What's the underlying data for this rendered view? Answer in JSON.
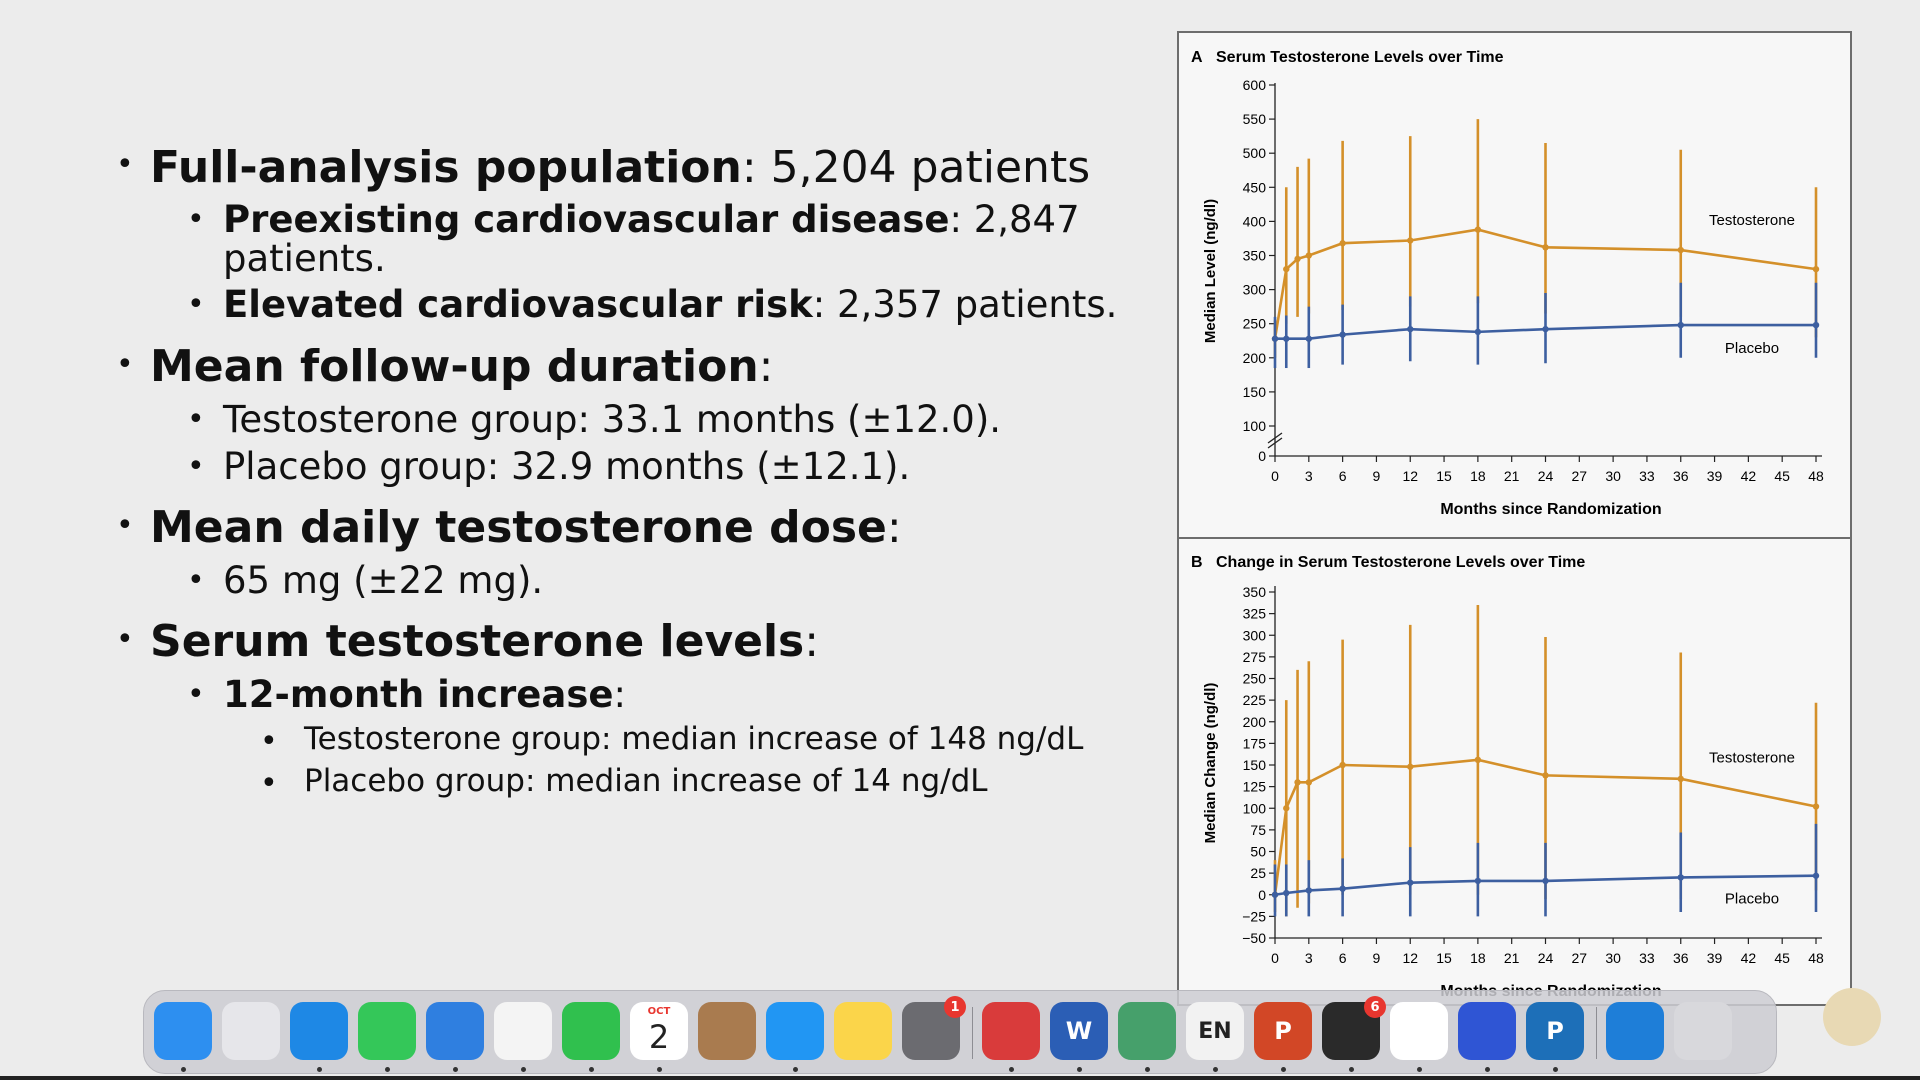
{
  "slide": {
    "bullets": [
      {
        "bold": "Full-analysis population",
        "rest": ": 5,204 patients"
      },
      {
        "bold": "Preexisting cardiovascular disease",
        "rest": ": 2,847",
        "cont": "patients."
      },
      {
        "bold": "Elevated cardiovascular risk",
        "rest": ": 2,357 patients."
      },
      {
        "bold": "Mean follow-up duration",
        "rest": ":"
      },
      {
        "bold": "",
        "rest": "Testosterone group: 33.1 months (±12.0)."
      },
      {
        "bold": "",
        "rest": "Placebo group: 32.9 months (±12.1)."
      },
      {
        "bold": "Mean daily testosterone dose",
        "rest": ":"
      },
      {
        "bold": "",
        "rest": "65 mg (±22 mg)."
      },
      {
        "bold": "Serum testosterone levels",
        "rest": ":"
      },
      {
        "bold": "12-month increase",
        "rest": ":"
      },
      {
        "bold": "",
        "rest": "Testosterone group: median increase of 148 ng/dL"
      },
      {
        "bold": "",
        "rest": "Placebo group: median increase of 14 ng/dL"
      }
    ]
  },
  "figure": {
    "panelA": {
      "letter": "A",
      "title": "Serum Testosterone Levels over Time",
      "xlabel": "Months since Randomization",
      "ylabel": "Median Level (ng/dl)"
    },
    "panelB": {
      "letter": "B",
      "title": "Change in Serum Testosterone Levels over Time",
      "xlabel": "Months since Randomization",
      "ylabel": "Median Change (ng/dl)"
    }
  },
  "chart_data": [
    {
      "type": "line",
      "title": "Serum Testosterone Levels over Time",
      "xlabel": "Months since Randomization",
      "ylabel": "Median Level (ng/dl)",
      "xticks": [
        0,
        3,
        6,
        9,
        12,
        15,
        18,
        21,
        24,
        27,
        30,
        33,
        36,
        39,
        42,
        45,
        48
      ],
      "yticks": [
        0,
        100,
        150,
        200,
        250,
        300,
        350,
        400,
        450,
        500,
        550,
        600
      ],
      "xlim": [
        0,
        48
      ],
      "ylim": [
        0,
        600
      ],
      "y_axis_break": true,
      "series": [
        {
          "name": "Testosterone",
          "color": "#d4902a",
          "x": [
            0,
            1,
            2,
            3,
            6,
            12,
            18,
            24,
            36,
            48
          ],
          "y": [
            228,
            330,
            345,
            350,
            368,
            372,
            388,
            362,
            358,
            330
          ],
          "err_low": [
            200,
            250,
            260,
            265,
            270,
            275,
            280,
            265,
            260,
            230
          ],
          "err_high": [
            255,
            450,
            480,
            492,
            518,
            525,
            550,
            515,
            505,
            450
          ]
        },
        {
          "name": "Placebo",
          "color": "#3d5fa0",
          "x": [
            0,
            1,
            3,
            6,
            12,
            18,
            24,
            36,
            48
          ],
          "y": [
            228,
            228,
            228,
            234,
            242,
            238,
            242,
            248,
            248
          ],
          "err_low": [
            185,
            185,
            185,
            190,
            195,
            190,
            192,
            200,
            200
          ],
          "err_high": [
            260,
            262,
            275,
            278,
            290,
            290,
            295,
            310,
            310
          ]
        }
      ]
    },
    {
      "type": "line",
      "title": "Change in Serum Testosterone Levels over Time",
      "xlabel": "Months since Randomization",
      "ylabel": "Median Change (ng/dl)",
      "xticks": [
        0,
        3,
        6,
        9,
        12,
        15,
        18,
        21,
        24,
        27,
        30,
        33,
        36,
        39,
        42,
        45,
        48
      ],
      "yticks": [
        -50,
        -25,
        0,
        25,
        50,
        75,
        100,
        125,
        150,
        175,
        200,
        225,
        250,
        275,
        300,
        325,
        350
      ],
      "xlim": [
        0,
        48
      ],
      "ylim": [
        -50,
        350
      ],
      "series": [
        {
          "name": "Testosterone",
          "color": "#d4902a",
          "x": [
            0,
            1,
            2,
            3,
            6,
            12,
            18,
            24,
            36,
            48
          ],
          "y": [
            0,
            100,
            130,
            130,
            150,
            148,
            156,
            138,
            134,
            102
          ],
          "err_low": [
            -20,
            -25,
            -15,
            -10,
            0,
            0,
            0,
            -5,
            -5,
            5
          ],
          "err_high": [
            40,
            225,
            260,
            270,
            295,
            312,
            335,
            298,
            280,
            222
          ]
        },
        {
          "name": "Placebo",
          "color": "#3d5fa0",
          "x": [
            0,
            1,
            3,
            6,
            12,
            18,
            24,
            36,
            48
          ],
          "y": [
            0,
            2,
            5,
            7,
            14,
            16,
            16,
            20,
            22
          ],
          "err_low": [
            -25,
            -25,
            -25,
            -25,
            -25,
            -25,
            -25,
            -20,
            -20
          ],
          "err_high": [
            35,
            35,
            40,
            42,
            55,
            60,
            60,
            72,
            82
          ]
        }
      ]
    }
  ],
  "dock": {
    "apps": [
      {
        "name": "finder",
        "color": "#2d8ff0"
      },
      {
        "name": "launchpad",
        "color": "#e6e6ea"
      },
      {
        "name": "safari",
        "color": "#1e88e5"
      },
      {
        "name": "messages",
        "color": "#34c759"
      },
      {
        "name": "mail",
        "color": "#2f7fe0"
      },
      {
        "name": "photos",
        "color": "#f4f4f4"
      },
      {
        "name": "facetime",
        "color": "#30c04e"
      },
      {
        "name": "calendar",
        "color": "#ffffff",
        "month": "OCT",
        "day": "2"
      },
      {
        "name": "contacts",
        "color": "#a97b4f"
      },
      {
        "name": "app-store",
        "color": "#2196f3"
      },
      {
        "name": "notes",
        "color": "#fbd54a"
      },
      {
        "name": "system-settings",
        "color": "#6b6b70",
        "badge": "1"
      },
      {
        "name": "parallels",
        "color": "#d93b3b"
      },
      {
        "name": "word",
        "color": "#2b5eb5",
        "label": "W"
      },
      {
        "name": "vpn-globe",
        "color": "#46a06b"
      },
      {
        "name": "language",
        "color": "#f2f2f2",
        "label": "EN"
      },
      {
        "name": "powerpoint",
        "color": "#d24726",
        "label": "P"
      },
      {
        "name": "printer",
        "color": "#2a2a2a",
        "badge": "6"
      },
      {
        "name": "chrome",
        "color": "#ffffff"
      },
      {
        "name": "dots-app",
        "color": "#2f55d4"
      },
      {
        "name": "pycharm",
        "color": "#1d6fb8",
        "label": "P"
      },
      {
        "name": "downloads-swirl",
        "color": "#1e7ed8"
      },
      {
        "name": "trash",
        "color": "#d8d8dc"
      }
    ]
  }
}
